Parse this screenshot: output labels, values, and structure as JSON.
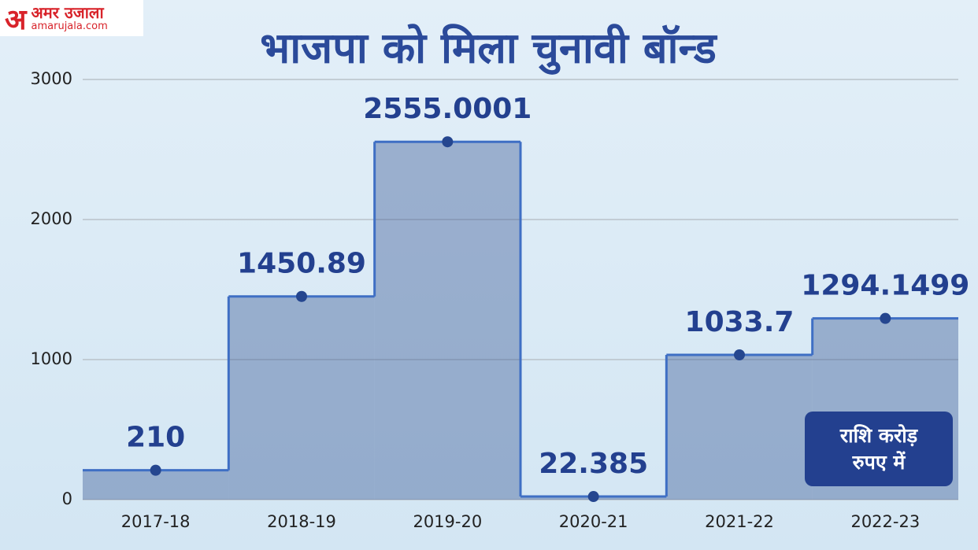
{
  "logo": {
    "mark": "अ",
    "name": "अमर उजाला",
    "site": "amarujala.com"
  },
  "note": "राशि करोड़ रुपए में",
  "chart_data": {
    "type": "step-area",
    "title": "भाजपा को मिला चुनावी बॉन्ड",
    "categories": [
      "2017-18",
      "2018-19",
      "2019-20",
      "2020-21",
      "2021-22",
      "2022-23"
    ],
    "values": [
      210,
      1450.89,
      2555.0001,
      22.385,
      1033.7,
      1294.1499
    ],
    "color": "#3f6fc4",
    "ylim": [
      0,
      3000
    ],
    "yticks": [
      0,
      1000,
      2000,
      3000
    ],
    "grid": true
  }
}
